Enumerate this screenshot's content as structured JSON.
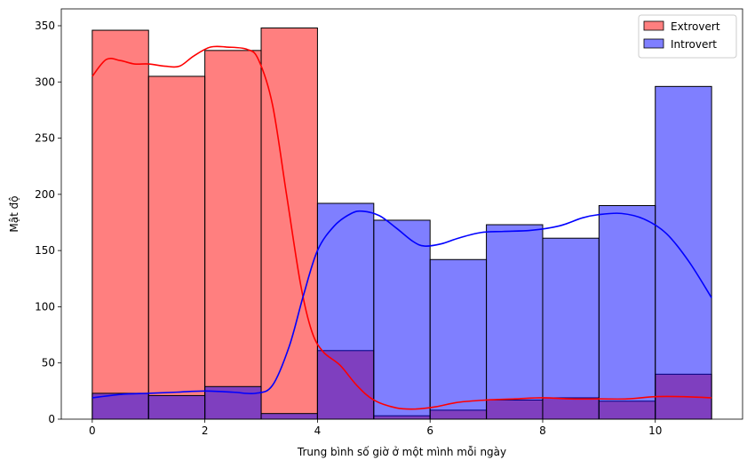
{
  "chart_data": {
    "type": "bar",
    "subtype": "overlaid-histogram-with-kde",
    "title": "",
    "xlabel": "Trung bình số giờ ở một mình mỗi ngày",
    "ylabel": "Mật độ",
    "xlim": [
      -0.55,
      11.55
    ],
    "ylim": [
      0,
      365
    ],
    "xticks": [
      0,
      2,
      4,
      6,
      8,
      10
    ],
    "yticks": [
      0,
      50,
      100,
      150,
      200,
      250,
      300,
      350
    ],
    "bin_edges": [
      0,
      1,
      2,
      3,
      4,
      5,
      6,
      7,
      8,
      9,
      10,
      11
    ],
    "grid": false,
    "legend_position": "top-right",
    "series": [
      {
        "name": "Extrovert",
        "color": "#ff0000",
        "values": [
          346,
          305,
          328,
          348,
          61,
          3,
          8,
          17,
          19,
          16,
          40
        ],
        "kde": [
          [
            0,
            305
          ],
          [
            0.25,
            320
          ],
          [
            0.5,
            319
          ],
          [
            0.75,
            316
          ],
          [
            1,
            316
          ],
          [
            1.3,
            314
          ],
          [
            1.55,
            314
          ],
          [
            1.8,
            323
          ],
          [
            2.1,
            331
          ],
          [
            2.4,
            331
          ],
          [
            2.75,
            329
          ],
          [
            2.95,
            320
          ],
          [
            3.2,
            280
          ],
          [
            3.45,
            200
          ],
          [
            3.7,
            120
          ],
          [
            3.9,
            78
          ],
          [
            4.1,
            60
          ],
          [
            4.4,
            48
          ],
          [
            4.7,
            30
          ],
          [
            5.0,
            17
          ],
          [
            5.4,
            10
          ],
          [
            5.75,
            9
          ],
          [
            6.1,
            11
          ],
          [
            6.5,
            15
          ],
          [
            7.0,
            17
          ],
          [
            7.5,
            18
          ],
          [
            8.0,
            19
          ],
          [
            8.5,
            18
          ],
          [
            9.0,
            18
          ],
          [
            9.5,
            18
          ],
          [
            10.0,
            20
          ],
          [
            10.5,
            20
          ],
          [
            11,
            19
          ]
        ]
      },
      {
        "name": "Introvert",
        "color": "#0000ff",
        "values": [
          23,
          21,
          29,
          5,
          192,
          177,
          142,
          173,
          161,
          190,
          296
        ],
        "kde": [
          [
            0,
            19
          ],
          [
            0.5,
            22
          ],
          [
            1.0,
            23
          ],
          [
            1.5,
            24
          ],
          [
            2.0,
            25
          ],
          [
            2.5,
            24
          ],
          [
            2.9,
            23
          ],
          [
            3.2,
            30
          ],
          [
            3.5,
            65
          ],
          [
            3.75,
            110
          ],
          [
            4.0,
            150
          ],
          [
            4.3,
            172
          ],
          [
            4.6,
            183
          ],
          [
            4.8,
            185
          ],
          [
            5.1,
            181
          ],
          [
            5.4,
            170
          ],
          [
            5.7,
            158
          ],
          [
            5.9,
            154
          ],
          [
            6.2,
            156
          ],
          [
            6.5,
            161
          ],
          [
            6.9,
            166
          ],
          [
            7.3,
            167
          ],
          [
            7.8,
            168
          ],
          [
            8.3,
            172
          ],
          [
            8.7,
            179
          ],
          [
            9.0,
            182
          ],
          [
            9.4,
            183
          ],
          [
            9.8,
            178
          ],
          [
            10.2,
            165
          ],
          [
            10.6,
            140
          ],
          [
            11,
            108
          ]
        ]
      }
    ]
  }
}
